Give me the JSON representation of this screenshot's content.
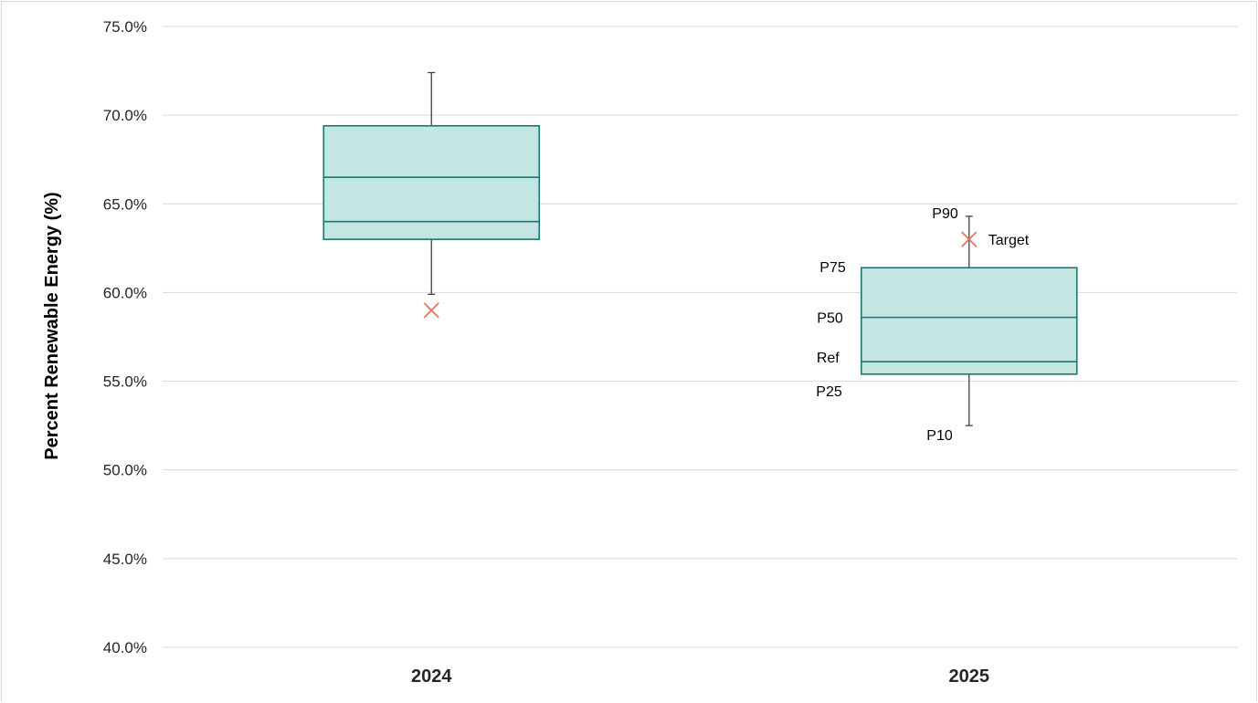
{
  "chart_data": {
    "type": "box",
    "ylabel": "Percent Renewable Energy (%)",
    "xlabel": "",
    "ylim": [
      0.4,
      0.75
    ],
    "y_ticks": [
      0.4,
      0.45,
      0.5,
      0.55,
      0.6,
      0.65,
      0.7,
      0.75
    ],
    "y_tick_labels": [
      "40.0%",
      "45.0%",
      "50.0%",
      "55.0%",
      "60.0%",
      "65.0%",
      "70.0%",
      "75.0%"
    ],
    "grid": true,
    "categories": [
      "2024",
      "2025"
    ],
    "boxes": [
      {
        "category": "2024",
        "p10": 0.599,
        "p25": 0.63,
        "ref": 0.64,
        "p50": 0.665,
        "p75": 0.694,
        "p90": 0.724,
        "target": 0.59
      },
      {
        "category": "2025",
        "p10": 0.525,
        "p25": 0.554,
        "ref": 0.561,
        "p50": 0.586,
        "p75": 0.614,
        "p90": 0.643,
        "target": 0.63
      }
    ],
    "annotations": {
      "p90": "P90",
      "target": "Target",
      "p75": "P75",
      "p50": "P50",
      "ref": "Ref",
      "p25": "P25",
      "p10": "P10"
    },
    "colors": {
      "box_fill": "#c3e6e2",
      "box_stroke": "#1d7675",
      "whisker": "#404040",
      "target_marker": "#e8735f",
      "grid": "#d9d9d9"
    }
  }
}
